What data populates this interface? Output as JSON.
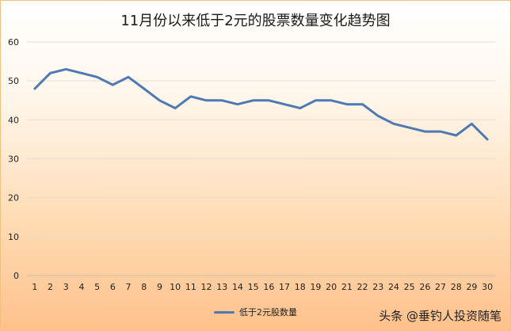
{
  "watermark": "头条 @垂钓人投资随笔",
  "chart_data": {
    "type": "line",
    "title": "11月份以来低于2元的股票数量变化趋势图",
    "xlabel": "",
    "ylabel": "",
    "x": [
      1,
      2,
      3,
      4,
      5,
      6,
      7,
      8,
      9,
      10,
      11,
      12,
      13,
      14,
      15,
      16,
      17,
      18,
      19,
      20,
      21,
      22,
      23,
      24,
      25,
      26,
      27,
      28,
      29,
      30
    ],
    "series": [
      {
        "name": "低于2元股数量",
        "color": "#4f79b3",
        "values": [
          48,
          52,
          53,
          52,
          51,
          49,
          51,
          48,
          45,
          43,
          46,
          45,
          45,
          44,
          45,
          45,
          44,
          43,
          45,
          45,
          44,
          44,
          41,
          39,
          38,
          37,
          37,
          36,
          39,
          35
        ]
      }
    ],
    "ylim": [
      0,
      60
    ],
    "yticks": [
      0,
      10,
      20,
      30,
      40,
      50,
      60
    ],
    "grid": true,
    "legend": "bottom"
  }
}
